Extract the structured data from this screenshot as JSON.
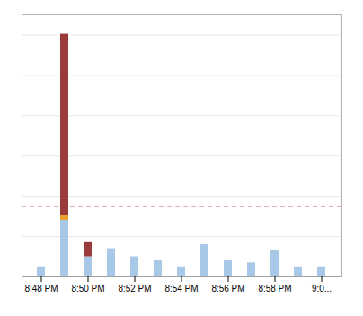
{
  "chart_data": {
    "type": "bar",
    "stacked": true,
    "categories": [
      "8:48 PM",
      null,
      "8:50 PM",
      null,
      "8:52 PM",
      null,
      "8:54 PM",
      null,
      "8:56 PM",
      null,
      "8:58 PM",
      null,
      "9:0..."
    ],
    "series": [
      {
        "color": "#a8c8e8",
        "values": [
          2.5,
          14.0,
          5.0,
          7.0,
          5.0,
          4.0,
          2.5,
          8.0,
          4.0,
          3.5,
          6.5,
          2.5,
          2.5
        ]
      },
      {
        "color": "#e8a030",
        "values": [
          0.0,
          1.2,
          0.0,
          0.0,
          0.0,
          0.0,
          0.0,
          0.0,
          0.0,
          0.0,
          0.0,
          0.0,
          0.0
        ]
      },
      {
        "color": "#9b3a3a",
        "values": [
          0.0,
          45.0,
          3.5,
          0.0,
          0.0,
          0.0,
          0.0,
          0.0,
          0.0,
          0.0,
          0.0,
          0.0,
          0.0
        ]
      }
    ],
    "ylim": [
      0,
      65
    ],
    "yticks": [
      0,
      10,
      20,
      30,
      40,
      50,
      60
    ],
    "grid": true,
    "tick_labels": "x",
    "reference_lines": [
      {
        "value": 17.5,
        "color": "#9b3a3a",
        "line_style": "dashed"
      }
    ]
  }
}
